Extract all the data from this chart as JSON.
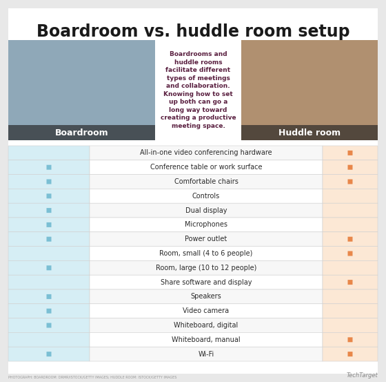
{
  "title": "Boardroom vs. huddle room setup",
  "subtitle": "Boardrooms and\nhuddle rooms\nfacilitate different\ntypes of meetings\nand collaboration.\nKnowing how to set\nup both can go a\nlong way toward\ncreating a productive\nmeeting space.",
  "left_label": "Boardroom",
  "right_label": "Huddle room",
  "rows": [
    {
      "text": "All-in-one video conferencing hardware",
      "boardroom": false,
      "huddle": true
    },
    {
      "text": "Conference table or work surface",
      "boardroom": true,
      "huddle": true
    },
    {
      "text": "Comfortable chairs",
      "boardroom": true,
      "huddle": true
    },
    {
      "text": "Controls",
      "boardroom": true,
      "huddle": false
    },
    {
      "text": "Dual display",
      "boardroom": true,
      "huddle": false
    },
    {
      "text": "Microphones",
      "boardroom": true,
      "huddle": false
    },
    {
      "text": "Power outlet",
      "boardroom": true,
      "huddle": true
    },
    {
      "text": "Room, small (4 to 6 people)",
      "boardroom": false,
      "huddle": true
    },
    {
      "text": "Room, large (10 to 12 people)",
      "boardroom": true,
      "huddle": false
    },
    {
      "text": "Share software and display",
      "boardroom": false,
      "huddle": true
    },
    {
      "text": "Speakers",
      "boardroom": true,
      "huddle": false
    },
    {
      "text": "Video camera",
      "boardroom": true,
      "huddle": false
    },
    {
      "text": "Whiteboard, digital",
      "boardroom": true,
      "huddle": false
    },
    {
      "text": "Whiteboard, manual",
      "boardroom": false,
      "huddle": true
    },
    {
      "text": "Wi-Fi",
      "boardroom": true,
      "huddle": true
    }
  ],
  "boardroom_sq_color": "#7bbfd4",
  "huddle_sq_color": "#e8874a",
  "boardroom_bg": "#d6eef5",
  "huddle_bg": "#fce8d5",
  "center_bg": "#f2f2f2",
  "title_color": "#1a1a1a",
  "subtitle_color": "#5a2040",
  "outer_bg": "#e8e8e8",
  "inner_bg": "#ffffff",
  "board_img_color": "#8fa8b8",
  "huddle_img_color": "#b09070",
  "footer_text": "TechTarget",
  "footer_tiny": "PHOTOGRAPH: BOARDROOM: DRMR/ISTOCK/GETTY IMAGES; HUDDLE ROOM: ISTOCK/GETTY IMAGES"
}
